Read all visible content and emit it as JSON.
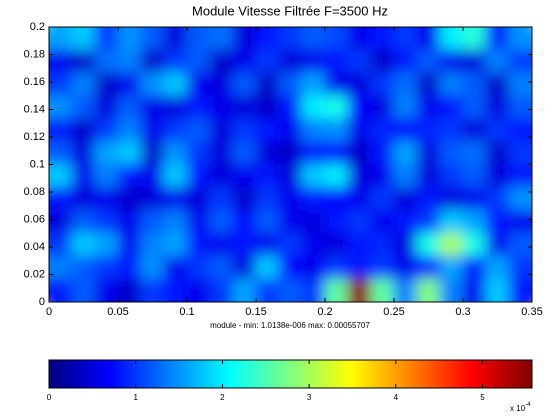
{
  "chart_data": {
    "type": "heatmap",
    "title": "Module Vitesse Filtrée F=3500 Hz",
    "subtitle": "module - min: 1.0138e-006  max: 0.00055707",
    "xlim": [
      0,
      0.35
    ],
    "xticks": [
      0,
      0.05,
      0.1,
      0.15,
      0.2,
      0.25,
      0.3,
      0.35
    ],
    "ylim": [
      0,
      0.2
    ],
    "yticks": [
      0,
      0.02,
      0.04,
      0.06,
      0.08,
      0.1,
      0.12,
      0.14,
      0.16,
      0.18,
      0.2
    ],
    "colormap": "jet",
    "clim": [
      0,
      5.5707
    ],
    "cticks": [
      0,
      1,
      2,
      3,
      4,
      5
    ],
    "color_scale_multiplier": "x 10",
    "color_scale_exponent": "-4",
    "z": [
      [
        1.6,
        1.8,
        1.0,
        1.5,
        1.2,
        0.5,
        1.2,
        1.3,
        0.5,
        0.8,
        1.0,
        1.2,
        1.1,
        0.6,
        0.8,
        1.0,
        0.6,
        2.0,
        2.3,
        0.8,
        1.5
      ],
      [
        0.6,
        0.4,
        1.3,
        1.4,
        0.4,
        1.0,
        1.2,
        0.4,
        0.6,
        1.0,
        0.5,
        0.6,
        0.8,
        1.0,
        0.4,
        0.8,
        1.2,
        0.6,
        0.5,
        1.4,
        1.0
      ],
      [
        1.0,
        1.4,
        0.4,
        0.6,
        1.5,
        1.8,
        0.6,
        0.5,
        1.2,
        0.4,
        1.2,
        1.6,
        0.6,
        0.5,
        1.0,
        1.3,
        0.4,
        1.4,
        1.2,
        0.4,
        1.4
      ],
      [
        1.5,
        1.2,
        0.5,
        1.2,
        0.6,
        0.5,
        0.8,
        0.6,
        0.5,
        0.4,
        0.8,
        2.0,
        2.2,
        0.7,
        0.5,
        1.4,
        0.6,
        0.8,
        1.2,
        0.5,
        1.2
      ],
      [
        0.8,
        0.4,
        1.0,
        1.4,
        0.6,
        1.0,
        1.2,
        0.5,
        1.0,
        0.8,
        0.6,
        1.4,
        1.5,
        0.6,
        0.9,
        0.7,
        0.9,
        1.0,
        0.5,
        1.0,
        0.8
      ],
      [
        1.2,
        0.5,
        1.6,
        1.8,
        0.4,
        1.5,
        1.0,
        0.5,
        1.2,
        0.5,
        0.4,
        0.8,
        0.7,
        0.4,
        0.8,
        1.6,
        0.5,
        1.2,
        1.3,
        0.4,
        1.0
      ],
      [
        1.8,
        0.6,
        1.4,
        0.8,
        0.6,
        1.8,
        0.8,
        0.5,
        0.6,
        0.8,
        0.5,
        1.8,
        2.0,
        0.5,
        0.6,
        1.4,
        0.5,
        1.0,
        1.2,
        0.5,
        0.8
      ],
      [
        0.8,
        0.5,
        0.6,
        0.4,
        0.5,
        0.6,
        0.5,
        1.0,
        0.4,
        1.0,
        0.6,
        0.8,
        0.7,
        0.6,
        1.0,
        0.5,
        0.8,
        0.5,
        0.6,
        1.0,
        1.5
      ],
      [
        0.5,
        1.2,
        1.0,
        0.6,
        1.2,
        1.4,
        0.6,
        1.2,
        0.7,
        1.2,
        0.6,
        0.5,
        0.8,
        1.0,
        0.6,
        0.8,
        1.0,
        1.8,
        1.6,
        0.8,
        0.6
      ],
      [
        1.0,
        1.8,
        1.6,
        0.6,
        1.4,
        1.6,
        0.8,
        0.6,
        0.8,
        0.6,
        1.0,
        0.6,
        0.5,
        0.8,
        0.9,
        0.5,
        2.2,
        3.0,
        2.2,
        0.6,
        1.2
      ],
      [
        1.4,
        1.2,
        1.0,
        0.8,
        1.5,
        0.6,
        1.0,
        1.2,
        0.5,
        1.8,
        0.7,
        0.6,
        1.0,
        0.8,
        1.0,
        0.6,
        0.8,
        1.6,
        0.8,
        1.6,
        1.0
      ],
      [
        0.8,
        1.2,
        0.6,
        0.4,
        1.0,
        0.8,
        0.6,
        1.0,
        1.6,
        1.0,
        1.2,
        1.0,
        2.6,
        5.5,
        2.6,
        1.4,
        2.8,
        1.4,
        0.6,
        1.8,
        0.8
      ]
    ]
  }
}
